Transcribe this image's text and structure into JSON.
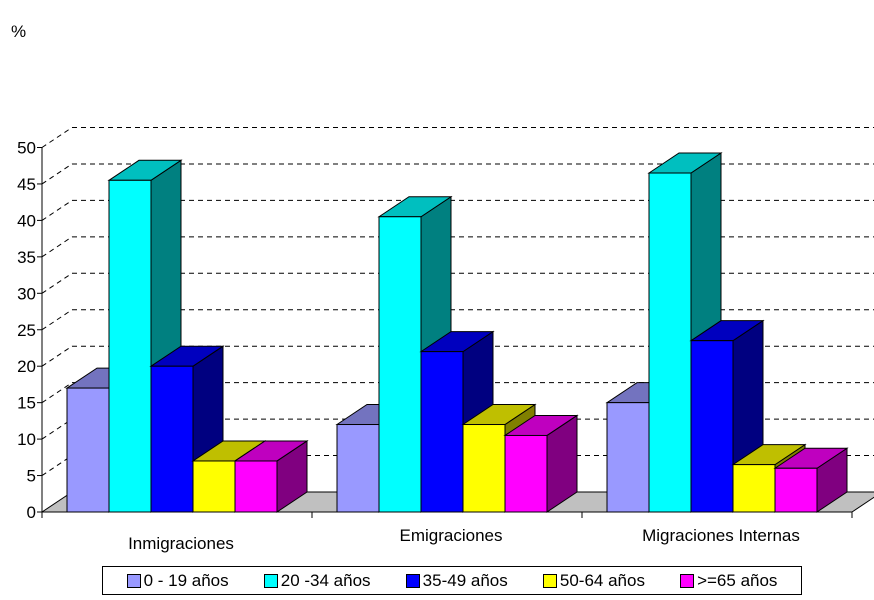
{
  "chart_data": {
    "type": "bar",
    "ylabel": "%",
    "ylim": [
      0,
      50
    ],
    "yticks": [
      0,
      5,
      10,
      15,
      20,
      25,
      30,
      35,
      40,
      45,
      50
    ],
    "grid": true,
    "legend_position": "bottom",
    "categories": [
      "Inmigraciones",
      "Emigraciones",
      "Migraciones Internas"
    ],
    "series": [
      {
        "name": "0 - 19 años",
        "color": "#9999ff",
        "values": [
          17,
          12,
          15
        ]
      },
      {
        "name": "20 -34 años",
        "color": "#00ffff",
        "values": [
          45.5,
          40.5,
          46.5
        ]
      },
      {
        "name": "35-49 años",
        "color": "#0000ff",
        "values": [
          20,
          22,
          23.5
        ]
      },
      {
        "name": "50-64 años",
        "color": "#ffff00",
        "values": [
          7,
          12,
          6.5
        ]
      },
      {
        "name": ">=65 años",
        "color": "#ff00ff",
        "values": [
          7,
          10.5,
          6
        ]
      }
    ]
  }
}
